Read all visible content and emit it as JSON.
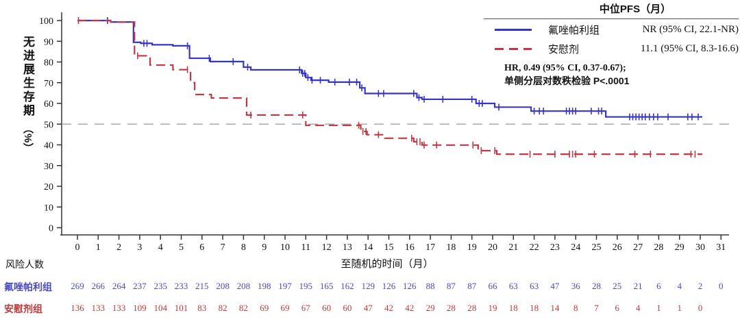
{
  "chart_data": {
    "type": "line",
    "subtype": "kaplan-meier-step",
    "xlabel": "至随机的时间（月）",
    "ylabel": "无进展生存期",
    "ylabel_unit": "（%）",
    "xlim": [
      0,
      31
    ],
    "ylim": [
      0,
      100
    ],
    "x_ticks": [
      0,
      1,
      2,
      3,
      4,
      5,
      6,
      7,
      8,
      9,
      10,
      11,
      12,
      13,
      14,
      15,
      16,
      17,
      18,
      19,
      20,
      21,
      22,
      23,
      24,
      25,
      26,
      27,
      28,
      29,
      30,
      31
    ],
    "y_ticks": [
      0,
      10,
      20,
      30,
      40,
      50,
      60,
      70,
      80,
      90,
      100
    ],
    "refline_y": 50,
    "grid": false,
    "legend_position": "top-right",
    "legend_header": "中位PFS（月）",
    "stats_line1": "HR, 0.49 (95% CI, 0.37-0.67);",
    "stats_line2": "单侧分层对数秩检验  P<.0001",
    "series": [
      {
        "name": "氟唑帕利组",
        "median_label": "NR (95% CI, 22.1-NR)",
        "color": "#3434c8",
        "line_style": "solid",
        "steps": [
          [
            0,
            100
          ],
          [
            1.6,
            99.3
          ],
          [
            2.7,
            89.5
          ],
          [
            3.05,
            89
          ],
          [
            3.6,
            88.3
          ],
          [
            4.6,
            87.8
          ],
          [
            5.4,
            81.8
          ],
          [
            6.4,
            80.2
          ],
          [
            8.0,
            77.5
          ],
          [
            8.35,
            76.2
          ],
          [
            10.8,
            74.5
          ],
          [
            11.0,
            72.5
          ],
          [
            11.25,
            71.2
          ],
          [
            12.1,
            70.3
          ],
          [
            13.6,
            67.5
          ],
          [
            13.85,
            64.8
          ],
          [
            16.35,
            62.8
          ],
          [
            16.6,
            62.0
          ],
          [
            19.2,
            60.0
          ],
          [
            20.1,
            58.2
          ],
          [
            21.85,
            56.3
          ],
          [
            25.45,
            53.5
          ],
          [
            30.1,
            53.5
          ]
        ],
        "censors": [
          [
            1.45,
            100
          ],
          [
            3.2,
            89
          ],
          [
            3.35,
            89
          ],
          [
            5.3,
            87.8
          ],
          [
            6.35,
            81.8
          ],
          [
            7.5,
            80.2
          ],
          [
            8.2,
            77.5
          ],
          [
            10.7,
            76.2
          ],
          [
            10.85,
            74.5
          ],
          [
            10.95,
            74.5
          ],
          [
            11.1,
            72.5
          ],
          [
            11.3,
            71.2
          ],
          [
            11.7,
            71.2
          ],
          [
            12.4,
            70.3
          ],
          [
            13.1,
            70.3
          ],
          [
            13.45,
            70.3
          ],
          [
            13.7,
            67.5
          ],
          [
            14.5,
            64.8
          ],
          [
            14.75,
            64.8
          ],
          [
            16.2,
            64.8
          ],
          [
            16.45,
            62.8
          ],
          [
            16.7,
            62
          ],
          [
            17.6,
            62
          ],
          [
            19.0,
            62
          ],
          [
            19.35,
            60
          ],
          [
            19.5,
            60
          ],
          [
            20.3,
            58.2
          ],
          [
            22.0,
            56.3
          ],
          [
            22.25,
            56.3
          ],
          [
            22.45,
            56.3
          ],
          [
            23.55,
            56.3
          ],
          [
            23.7,
            56.3
          ],
          [
            23.85,
            56.3
          ],
          [
            24.0,
            56.3
          ],
          [
            24.75,
            56.3
          ],
          [
            25.1,
            56.3
          ],
          [
            25.25,
            56.3
          ],
          [
            26.6,
            53.5
          ],
          [
            26.75,
            53.5
          ],
          [
            26.9,
            53.5
          ],
          [
            27.05,
            53.5
          ],
          [
            27.2,
            53.5
          ],
          [
            27.35,
            53.5
          ],
          [
            27.55,
            53.5
          ],
          [
            27.75,
            53.5
          ],
          [
            27.95,
            53.5
          ],
          [
            28.45,
            53.5
          ],
          [
            29.4,
            53.5
          ],
          [
            29.6,
            53.5
          ],
          [
            29.9,
            53.5
          ]
        ]
      },
      {
        "name": "安慰剂",
        "median_label": "11.1 (95% CI, 8.3-16.6)",
        "color": "#c23744",
        "line_style": "dashed",
        "steps": [
          [
            0,
            100
          ],
          [
            1.6,
            99.3
          ],
          [
            2.75,
            83
          ],
          [
            3.5,
            78.5
          ],
          [
            4.6,
            76.3
          ],
          [
            5.45,
            70
          ],
          [
            5.65,
            64.3
          ],
          [
            6.45,
            62.6
          ],
          [
            8.15,
            54.4
          ],
          [
            11.0,
            49.4
          ],
          [
            13.65,
            46.5
          ],
          [
            13.95,
            44.9
          ],
          [
            14.8,
            43.2
          ],
          [
            16.2,
            41.5
          ],
          [
            16.6,
            39.9
          ],
          [
            19.3,
            37.2
          ],
          [
            20.2,
            35.5
          ],
          [
            30.1,
            35.5
          ]
        ],
        "censors": [
          [
            0.05,
            100
          ],
          [
            2.9,
            83
          ],
          [
            5.3,
            76.3
          ],
          [
            8.35,
            54.4
          ],
          [
            10.85,
            54.4
          ],
          [
            13.55,
            49.4
          ],
          [
            13.75,
            46.5
          ],
          [
            13.9,
            46.5
          ],
          [
            14.5,
            44.9
          ],
          [
            16.1,
            43.2
          ],
          [
            16.35,
            41.5
          ],
          [
            16.5,
            41.5
          ],
          [
            16.7,
            39.9
          ],
          [
            17.3,
            39.9
          ],
          [
            19.05,
            39.9
          ],
          [
            19.45,
            37.2
          ],
          [
            20.1,
            37.2
          ],
          [
            21.8,
            35.5
          ],
          [
            23.0,
            35.5
          ],
          [
            23.7,
            35.5
          ],
          [
            23.85,
            35.5
          ],
          [
            24.0,
            35.5
          ],
          [
            24.9,
            35.5
          ],
          [
            26.85,
            35.5
          ],
          [
            27.6,
            35.5
          ],
          [
            29.55,
            35.5
          ],
          [
            29.75,
            35.5
          ]
        ]
      }
    ]
  },
  "risk_table": {
    "title": "风险人数",
    "rows": [
      {
        "label": "氟唑帕利组",
        "color": "#4a4ac2",
        "values": [
          269,
          266,
          264,
          237,
          235,
          233,
          215,
          208,
          208,
          198,
          197,
          195,
          165,
          162,
          129,
          126,
          126,
          88,
          87,
          87,
          66,
          63,
          63,
          47,
          36,
          28,
          25,
          21,
          6,
          4,
          2,
          0
        ]
      },
      {
        "label": "安慰剂组",
        "color": "#bf3a3a",
        "values": [
          136,
          133,
          133,
          109,
          104,
          101,
          83,
          82,
          82,
          69,
          69,
          67,
          60,
          60,
          47,
          42,
          42,
          29,
          28,
          28,
          19,
          18,
          18,
          14,
          8,
          7,
          6,
          4,
          1,
          1,
          0
        ]
      }
    ]
  },
  "colors": {
    "axis": "#333333",
    "refline": "#999999",
    "text": "#111111"
  }
}
